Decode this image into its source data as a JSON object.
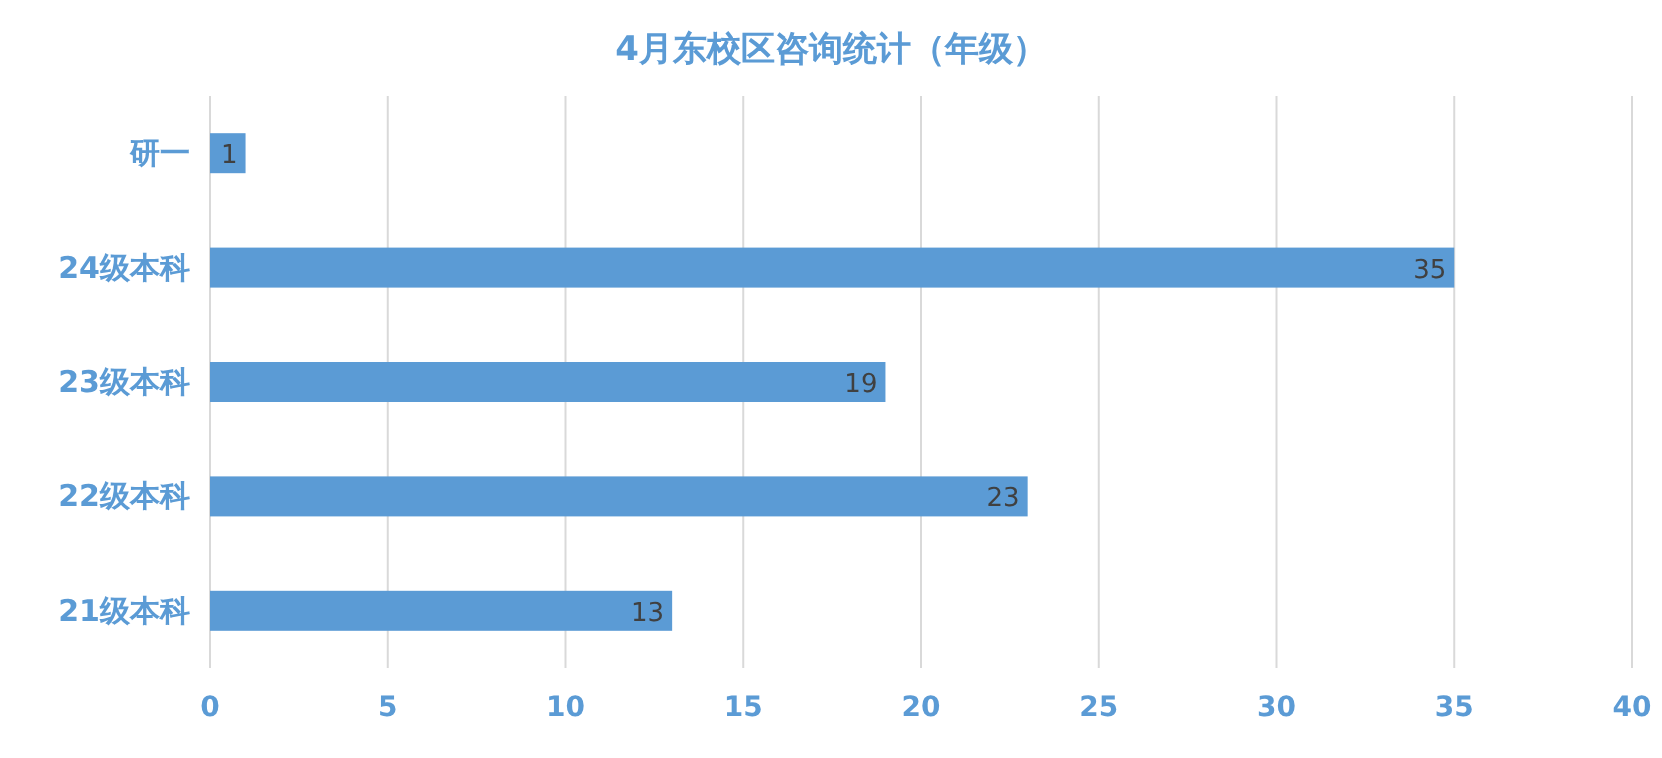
{
  "chart_data": {
    "type": "bar",
    "orientation": "horizontal",
    "title": "4月东校区咨询统计（年级）",
    "categories": [
      "研一",
      "24级本科",
      "23级本科",
      "22级本科",
      "21级本科"
    ],
    "values": [
      1,
      35,
      19,
      23,
      13
    ],
    "color": "#5b9bd5",
    "xlim": [
      0,
      40
    ],
    "xticks": [
      0,
      5,
      10,
      15,
      20,
      25,
      30,
      35,
      40
    ],
    "grid": "x",
    "data_labels": true
  }
}
